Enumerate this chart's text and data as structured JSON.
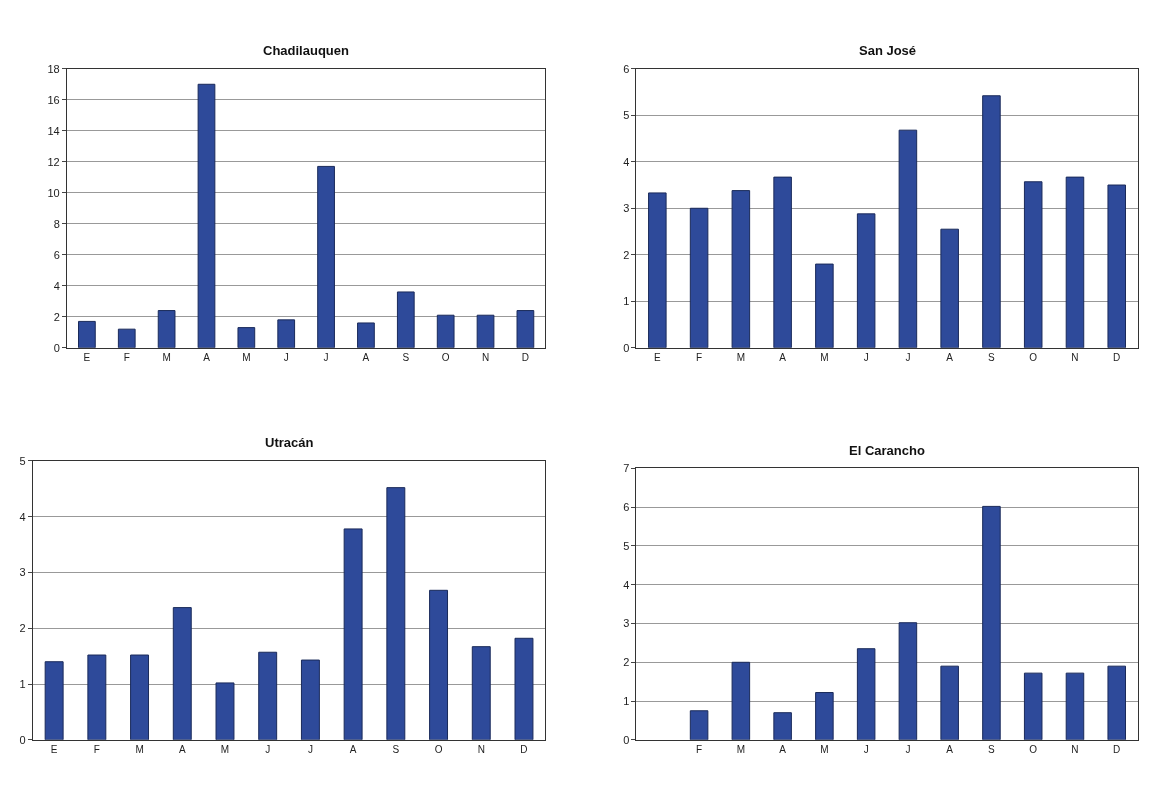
{
  "chart_data": [
    {
      "type": "bar",
      "title": "Chadilauquen",
      "categories": [
        "E",
        "F",
        "M",
        "A",
        "M",
        "J",
        "J",
        "A",
        "S",
        "O",
        "N",
        "D"
      ],
      "values": [
        1.7,
        1.2,
        2.4,
        17,
        1.3,
        1.8,
        11.7,
        1.6,
        3.6,
        2.1,
        2.1,
        2.4
      ],
      "color": "#2e4a9a",
      "ylim": [
        0,
        18
      ],
      "yticks": [
        0,
        2,
        4,
        6,
        8,
        10,
        12,
        14,
        16,
        18
      ],
      "grid": "y"
    },
    {
      "type": "bar",
      "title": "San José",
      "categories": [
        "E",
        "F",
        "M",
        "A",
        "M",
        "J",
        "J",
        "A",
        "S",
        "O",
        "N",
        "D"
      ],
      "values": [
        3.33,
        3.0,
        3.38,
        3.67,
        1.8,
        2.88,
        4.68,
        2.55,
        5.42,
        3.57,
        3.67,
        3.5
      ],
      "color": "#2e4a9a",
      "ylim": [
        0,
        6
      ],
      "yticks": [
        0,
        1,
        2,
        3,
        4,
        5,
        6
      ],
      "grid": "y"
    },
    {
      "type": "bar",
      "title": "Utracán",
      "categories": [
        "E",
        "F",
        "M",
        "A",
        "M",
        "J",
        "J",
        "A",
        "S",
        "O",
        "N",
        "D"
      ],
      "values": [
        1.4,
        1.52,
        1.52,
        2.37,
        1.02,
        1.57,
        1.43,
        3.78,
        4.52,
        2.68,
        1.67,
        1.82
      ],
      "color": "#2e4a9a",
      "ylim": [
        0,
        5
      ],
      "yticks": [
        0,
        1,
        2,
        3,
        4,
        5
      ],
      "grid": "y"
    },
    {
      "type": "bar",
      "title": "El Carancho",
      "categories": [
        null,
        "F",
        "M",
        "A",
        "M",
        "J",
        "J",
        "A",
        "S",
        "O",
        "N",
        "D"
      ],
      "values": [
        null,
        0.75,
        2.0,
        0.7,
        1.22,
        2.35,
        3.02,
        1.9,
        6.02,
        1.72,
        1.72,
        1.9
      ],
      "color": "#2e4a9a",
      "ylim": [
        0,
        7
      ],
      "yticks": [
        0,
        1,
        2,
        3,
        4,
        5,
        6,
        7
      ],
      "grid": "y"
    }
  ]
}
